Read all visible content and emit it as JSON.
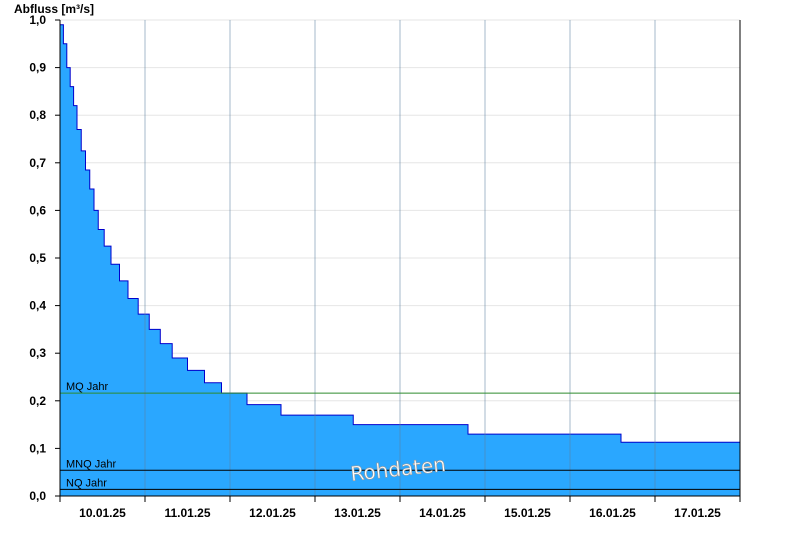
{
  "chart_data": {
    "type": "area",
    "ylabel": "Abfluss [m³/s]",
    "ylim": [
      0,
      1
    ],
    "yticks": [
      "0,0",
      "0,1",
      "0,2",
      "0,3",
      "0,4",
      "0,5",
      "0,6",
      "0,7",
      "0,8",
      "0,9",
      "1,0"
    ],
    "xlim_days": [
      0,
      8
    ],
    "xticks": [
      "10.01.25",
      "11.01.25",
      "12.01.25",
      "13.01.25",
      "14.01.25",
      "15.01.25",
      "16.01.25",
      "17.01.25"
    ],
    "grid": true,
    "watermark": "Rohdaten",
    "colors": {
      "area_fill": "#2aa7ff",
      "area_line": "#0000cc",
      "mq_line": "#2e8b2e",
      "mnq_line": "#000000",
      "nq_line": "#000000",
      "grid": "#e6e6e6"
    },
    "reference_lines": [
      {
        "name": "MQ Jahr",
        "value": 0.216
      },
      {
        "name": "MNQ Jahr",
        "value": 0.054
      },
      {
        "name": "NQ Jahr",
        "value": 0.014
      }
    ],
    "series": [
      {
        "name": "Abfluss",
        "step_x_days": [
          0,
          0.04,
          0.08,
          0.12,
          0.16,
          0.2,
          0.25,
          0.3,
          0.35,
          0.4,
          0.45,
          0.52,
          0.6,
          0.7,
          0.8,
          0.92,
          1.05,
          1.18,
          1.32,
          1.5,
          1.7,
          1.9,
          2.2,
          2.6,
          2.95,
          3.45,
          4.05,
          4.8,
          5.6,
          6.6,
          8
        ],
        "step_y": [
          0.99,
          0.95,
          0.9,
          0.86,
          0.82,
          0.77,
          0.725,
          0.685,
          0.645,
          0.6,
          0.56,
          0.525,
          0.487,
          0.452,
          0.415,
          0.382,
          0.35,
          0.32,
          0.29,
          0.264,
          0.238,
          0.216,
          0.192,
          0.17,
          0.17,
          0.15,
          0.15,
          0.13,
          0.13,
          0.113,
          0.113
        ]
      }
    ]
  }
}
